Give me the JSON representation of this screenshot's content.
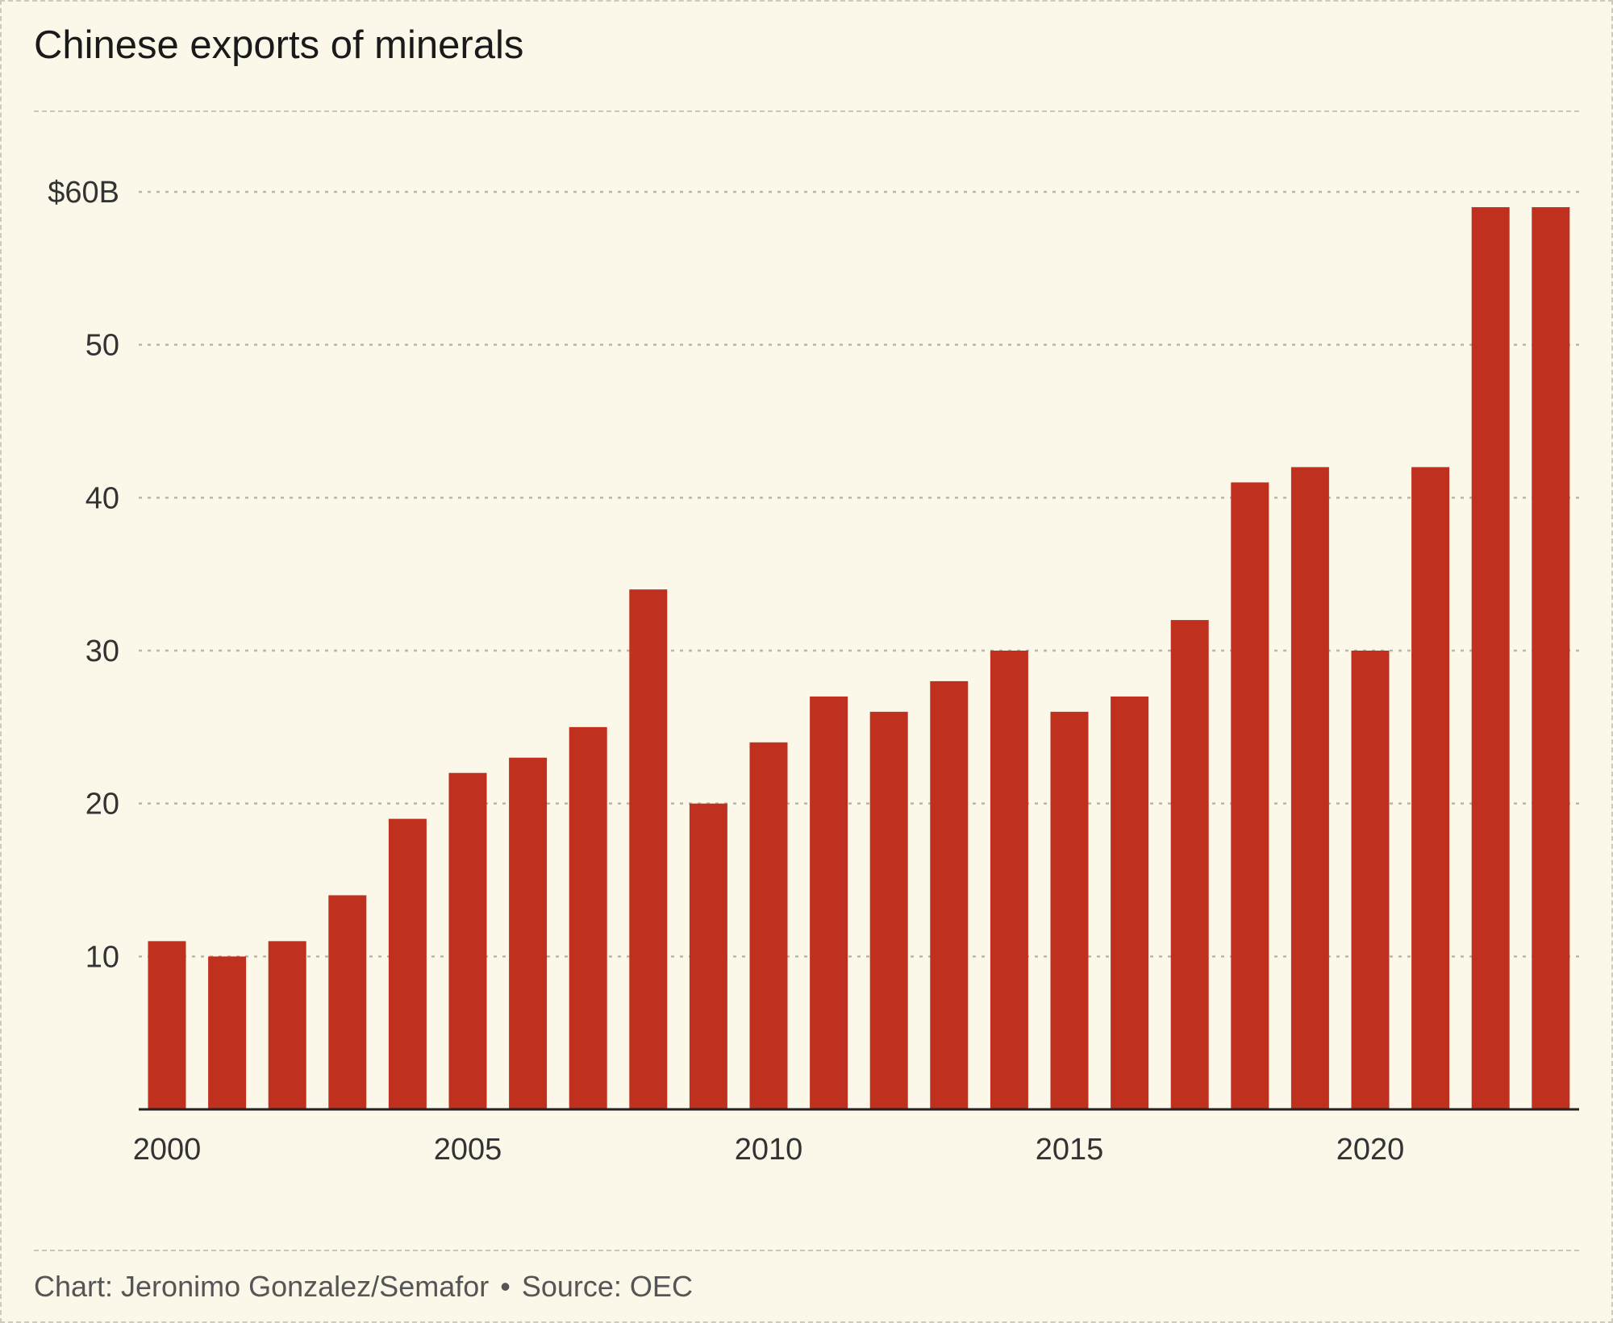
{
  "title": "Chinese exports of minerals",
  "credit": {
    "chart": "Chart: Jeronimo Gonzalez/Semafor",
    "separator": "•",
    "source": "Source: OEC"
  },
  "colors": {
    "bar": "#c0301f",
    "background": "#fbf8e9",
    "grid": "#b8b6a8",
    "axis": "#222222",
    "text": "#333333"
  },
  "chart_data": {
    "type": "bar",
    "categories": [
      "2000",
      "2001",
      "2002",
      "2003",
      "2004",
      "2005",
      "2006",
      "2007",
      "2008",
      "2009",
      "2010",
      "2011",
      "2012",
      "2013",
      "2014",
      "2015",
      "2016",
      "2017",
      "2018",
      "2019",
      "2020",
      "2021",
      "2022",
      "2023"
    ],
    "values": [
      11,
      10,
      11,
      14,
      19,
      22,
      23,
      25,
      34,
      20,
      24,
      27,
      26,
      28,
      30,
      26,
      27,
      32,
      41,
      42,
      30,
      42,
      59,
      59
    ],
    "title": "Chinese exports of minerals",
    "xlabel": "",
    "ylabel": "",
    "ylim": [
      0,
      60
    ],
    "yticks": [
      10,
      20,
      30,
      40,
      50,
      60
    ],
    "ytick_labels": [
      "10",
      "20",
      "30",
      "40",
      "50",
      "$60B"
    ],
    "xticks": [
      "2000",
      "2005",
      "2010",
      "2015",
      "2020"
    ],
    "grid": true,
    "legend": "none"
  }
}
